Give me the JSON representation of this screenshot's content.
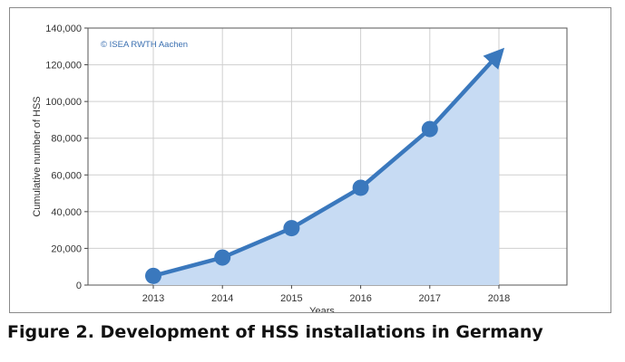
{
  "caption": "Figure 2. Development of HSS installations in Germany",
  "chart_data": {
    "type": "area",
    "title": "",
    "xlabel": "Years",
    "ylabel": "Cumulative number of HSS",
    "annotation": "© ISEA RWTH Aachen",
    "categories": [
      "2013",
      "2014",
      "2015",
      "2016",
      "2017",
      "2018"
    ],
    "series": [
      {
        "values": [
          5000,
          15000,
          31000,
          53000,
          85000,
          126000
        ],
        "markers": [
          true,
          true,
          true,
          true,
          true,
          false
        ],
        "end_arrow": true
      }
    ],
    "ylim": [
      0,
      140000
    ],
    "yticks": [
      0,
      20000,
      40000,
      60000,
      80000,
      100000,
      120000,
      140000
    ],
    "ytick_labels": [
      "0",
      "20,000",
      "40,000",
      "60,000",
      "80,000",
      "100,000",
      "120,000",
      "140,000"
    ],
    "grid": true,
    "line_color": "#3a78bd",
    "fill_color": "#c7dbf3",
    "grid_color": "#cfcfcf"
  }
}
